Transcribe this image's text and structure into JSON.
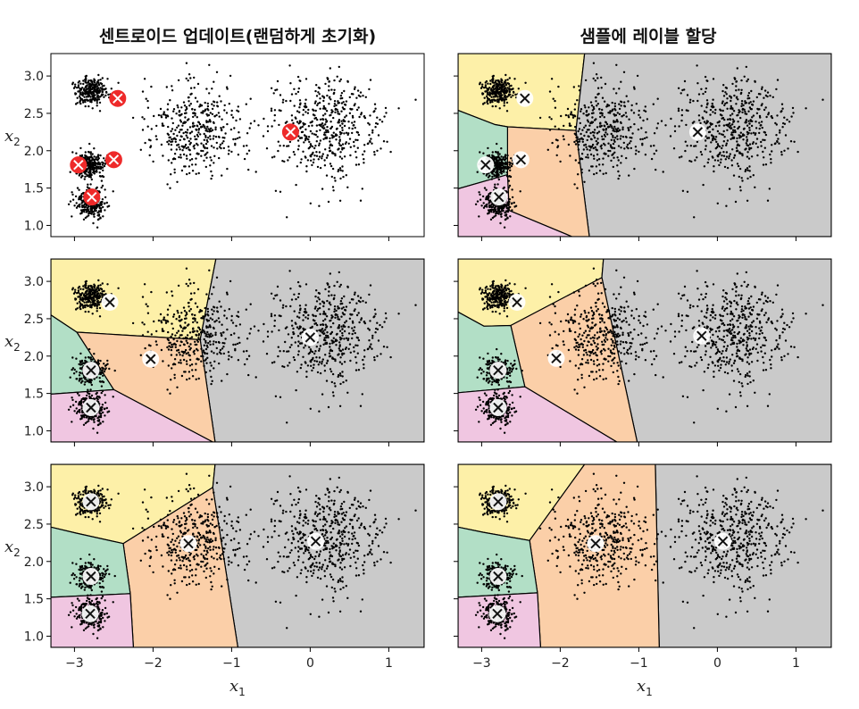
{
  "chart_data": {
    "type": "scatter",
    "titles": {
      "left": "센트로이드 업데이트(랜덤하게 초기화)",
      "right": "샘플에 레이블 할당"
    },
    "xlabel": "x",
    "xlabel_sub": "1",
    "ylabel": "x",
    "ylabel_sub": "2",
    "xlim": [
      -3.3,
      1.45
    ],
    "ylim": [
      0.85,
      3.3
    ],
    "xticks": [
      {
        "v": -3,
        "label": "−3"
      },
      {
        "v": -2,
        "label": "−2"
      },
      {
        "v": -1,
        "label": "−1"
      },
      {
        "v": 0,
        "label": "0"
      },
      {
        "v": 1,
        "label": "1"
      }
    ],
    "yticks": [
      {
        "v": 1.0,
        "label": "1.0"
      },
      {
        "v": 1.5,
        "label": "1.5"
      },
      {
        "v": 2.0,
        "label": "2.0"
      },
      {
        "v": 2.5,
        "label": "2.5"
      },
      {
        "v": 3.0,
        "label": "3.0"
      }
    ],
    "grid": false,
    "region_colors": {
      "yellow": "#fdf0a8",
      "green": "#b2dfc6",
      "orange": "#fbcfa8",
      "pink": "#f0c6e1",
      "gray": "#cacaca"
    },
    "clusters": [
      {
        "cx": -2.79,
        "cy": 2.8,
        "sd": 0.1,
        "n": 250
      },
      {
        "cx": -2.79,
        "cy": 1.8,
        "sd": 0.1,
        "n": 250
      },
      {
        "cx": -2.8,
        "cy": 1.3,
        "sd": 0.1,
        "n": 250
      },
      {
        "cx": -1.47,
        "cy": 2.29,
        "sd": 0.3,
        "n": 400
      },
      {
        "cx": 0.2,
        "cy": 2.3,
        "sd": 0.35,
        "n": 500
      }
    ],
    "panels": [
      {
        "id": "iter1-centroids",
        "row": 0,
        "col": 0,
        "centroid_style": "red",
        "centroids": [
          [
            -2.45,
            2.7
          ],
          [
            -0.25,
            2.25
          ],
          [
            -2.5,
            1.88
          ],
          [
            -2.95,
            1.81
          ],
          [
            -2.78,
            1.38
          ]
        ],
        "regions": []
      },
      {
        "id": "iter1-labels",
        "row": 0,
        "col": 1,
        "centroid_style": "white",
        "centroids": [
          [
            -2.45,
            2.7
          ],
          [
            -0.25,
            2.25
          ],
          [
            -2.5,
            1.88
          ],
          [
            -2.95,
            1.81
          ],
          [
            -2.78,
            1.38
          ]
        ],
        "regions": [
          {
            "color": "yellow",
            "points": [
              [
                -3.3,
                2.54
              ],
              [
                -3.3,
                3.3
              ],
              [
                -1.69,
                3.3
              ],
              [
                -1.8,
                2.27
              ],
              [
                -2.67,
                2.32
              ],
              [
                -2.83,
                2.35
              ]
            ]
          },
          {
            "color": "gray",
            "points": [
              [
                -1.69,
                3.3
              ],
              [
                1.45,
                3.3
              ],
              [
                1.45,
                0.85
              ],
              [
                -1.63,
                0.85
              ],
              [
                -1.8,
                2.27
              ]
            ]
          },
          {
            "color": "orange",
            "points": [
              [
                -1.8,
                2.27
              ],
              [
                -1.63,
                0.85
              ],
              [
                -1.85,
                0.85
              ],
              [
                -2.65,
                1.2
              ],
              [
                -2.67,
                1.68
              ],
              [
                -2.67,
                2.32
              ]
            ]
          },
          {
            "color": "green",
            "points": [
              [
                -3.3,
                2.54
              ],
              [
                -2.83,
                2.35
              ],
              [
                -2.67,
                2.32
              ],
              [
                -2.67,
                1.68
              ],
              [
                -3.3,
                1.49
              ]
            ]
          },
          {
            "color": "pink",
            "points": [
              [
                -3.3,
                1.49
              ],
              [
                -2.67,
                1.68
              ],
              [
                -2.65,
                1.2
              ],
              [
                -1.85,
                0.85
              ],
              [
                -3.3,
                0.85
              ]
            ]
          }
        ]
      },
      {
        "id": "iter2-centroids",
        "row": 1,
        "col": 0,
        "centroid_style": "white",
        "centroids": [
          [
            -2.55,
            2.72
          ],
          [
            0.0,
            2.25
          ],
          [
            -2.03,
            1.96
          ],
          [
            -2.79,
            1.81
          ],
          [
            -2.79,
            1.31
          ]
        ],
        "regions": [
          {
            "color": "yellow",
            "points": [
              [
                -3.3,
                2.55
              ],
              [
                -3.3,
                3.3
              ],
              [
                -1.2,
                3.3
              ],
              [
                -1.4,
                2.22
              ],
              [
                -2.97,
                2.32
              ]
            ]
          },
          {
            "color": "gray",
            "points": [
              [
                -1.2,
                3.3
              ],
              [
                1.45,
                3.3
              ],
              [
                1.45,
                0.85
              ],
              [
                -1.21,
                0.85
              ],
              [
                -1.4,
                2.22
              ]
            ]
          },
          {
            "color": "orange",
            "points": [
              [
                -2.97,
                2.32
              ],
              [
                -1.4,
                2.22
              ],
              [
                -1.21,
                0.85
              ],
              [
                -1.24,
                0.85
              ],
              [
                -2.5,
                1.55
              ]
            ]
          },
          {
            "color": "green",
            "points": [
              [
                -3.3,
                2.55
              ],
              [
                -2.97,
                2.32
              ],
              [
                -2.5,
                1.55
              ],
              [
                -3.3,
                1.49
              ]
            ]
          },
          {
            "color": "pink",
            "points": [
              [
                -3.3,
                1.49
              ],
              [
                -2.5,
                1.55
              ],
              [
                -1.24,
                0.85
              ],
              [
                -3.3,
                0.85
              ]
            ]
          }
        ]
      },
      {
        "id": "iter2-labels",
        "row": 1,
        "col": 1,
        "centroid_style": "white",
        "centroids": [
          [
            -2.55,
            2.72
          ],
          [
            -0.2,
            2.27
          ],
          [
            -2.05,
            1.97
          ],
          [
            -2.79,
            1.81
          ],
          [
            -2.79,
            1.31
          ]
        ],
        "regions": [
          {
            "color": "yellow",
            "points": [
              [
                -3.3,
                2.59
              ],
              [
                -3.3,
                3.3
              ],
              [
                -1.45,
                3.3
              ],
              [
                -1.47,
                3.05
              ],
              [
                -2.63,
                2.41
              ],
              [
                -2.97,
                2.4
              ]
            ]
          },
          {
            "color": "gray",
            "points": [
              [
                -1.47,
                3.05
              ],
              [
                -1.45,
                3.3
              ],
              [
                1.45,
                3.3
              ],
              [
                1.45,
                0.85
              ],
              [
                -1.02,
                0.85
              ]
            ]
          },
          {
            "color": "orange",
            "points": [
              [
                -2.63,
                2.41
              ],
              [
                -1.47,
                3.05
              ],
              [
                -1.02,
                0.85
              ],
              [
                -1.28,
                0.85
              ],
              [
                -2.45,
                1.59
              ]
            ]
          },
          {
            "color": "green",
            "points": [
              [
                -3.3,
                2.59
              ],
              [
                -2.97,
                2.4
              ],
              [
                -2.63,
                2.41
              ],
              [
                -2.45,
                1.59
              ],
              [
                -3.3,
                1.51
              ]
            ]
          },
          {
            "color": "pink",
            "points": [
              [
                -3.3,
                1.51
              ],
              [
                -2.45,
                1.59
              ],
              [
                -1.28,
                0.85
              ],
              [
                -3.3,
                0.85
              ]
            ]
          }
        ]
      },
      {
        "id": "iter3-centroids",
        "row": 2,
        "col": 0,
        "centroid_style": "white",
        "centroids": [
          [
            -2.79,
            2.8
          ],
          [
            0.07,
            2.27
          ],
          [
            -1.55,
            2.24
          ],
          [
            -2.79,
            1.8
          ],
          [
            -2.8,
            1.3
          ]
        ],
        "regions": [
          {
            "color": "yellow",
            "points": [
              [
                -3.3,
                2.46
              ],
              [
                -3.3,
                3.3
              ],
              [
                -1.21,
                3.3
              ],
              [
                -1.24,
                2.99
              ],
              [
                -2.38,
                2.24
              ],
              [
                -2.98,
                2.38
              ]
            ]
          },
          {
            "color": "gray",
            "points": [
              [
                -1.21,
                3.3
              ],
              [
                1.45,
                3.3
              ],
              [
                1.45,
                0.85
              ],
              [
                -0.92,
                0.85
              ],
              [
                -1.24,
                2.99
              ]
            ]
          },
          {
            "color": "orange",
            "points": [
              [
                -2.38,
                2.24
              ],
              [
                -1.24,
                2.99
              ],
              [
                -0.92,
                0.85
              ],
              [
                -2.25,
                0.85
              ],
              [
                -2.29,
                1.57
              ]
            ]
          },
          {
            "color": "green",
            "points": [
              [
                -3.3,
                2.46
              ],
              [
                -2.98,
                2.38
              ],
              [
                -2.38,
                2.24
              ],
              [
                -2.29,
                1.57
              ],
              [
                -3.3,
                1.52
              ]
            ]
          },
          {
            "color": "pink",
            "points": [
              [
                -3.3,
                1.52
              ],
              [
                -2.29,
                1.57
              ],
              [
                -2.25,
                0.85
              ],
              [
                -3.3,
                0.85
              ]
            ]
          }
        ]
      },
      {
        "id": "iter3-labels",
        "row": 2,
        "col": 1,
        "centroid_style": "white",
        "centroids": [
          [
            -2.79,
            2.8
          ],
          [
            0.07,
            2.27
          ],
          [
            -1.55,
            2.24
          ],
          [
            -2.79,
            1.8
          ],
          [
            -2.8,
            1.3
          ]
        ],
        "regions": [
          {
            "color": "yellow",
            "points": [
              [
                -3.3,
                2.46
              ],
              [
                -3.3,
                3.3
              ],
              [
                -1.69,
                3.3
              ],
              [
                -2.39,
                2.28
              ],
              [
                -2.98,
                2.39
              ]
            ]
          },
          {
            "color": "gray",
            "points": [
              [
                -0.79,
                3.3
              ],
              [
                1.45,
                3.3
              ],
              [
                1.45,
                0.85
              ],
              [
                -0.74,
                0.85
              ]
            ]
          },
          {
            "color": "orange",
            "points": [
              [
                -1.69,
                3.3
              ],
              [
                -0.79,
                3.3
              ],
              [
                -0.74,
                0.85
              ],
              [
                -2.25,
                0.85
              ],
              [
                -2.29,
                1.58
              ],
              [
                -2.39,
                2.28
              ]
            ]
          },
          {
            "color": "green",
            "points": [
              [
                -3.3,
                2.46
              ],
              [
                -2.98,
                2.39
              ],
              [
                -2.39,
                2.28
              ],
              [
                -2.29,
                1.58
              ],
              [
                -3.3,
                1.52
              ]
            ]
          },
          {
            "color": "pink",
            "points": [
              [
                -3.3,
                1.52
              ],
              [
                -2.29,
                1.58
              ],
              [
                -2.25,
                0.85
              ],
              [
                -3.3,
                0.85
              ]
            ]
          }
        ]
      }
    ]
  }
}
